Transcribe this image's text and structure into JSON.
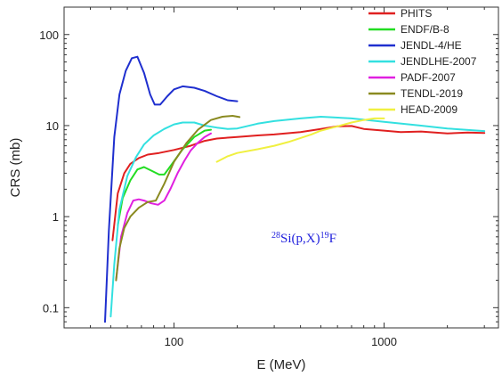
{
  "chart_data": {
    "type": "line",
    "xlabel": "E (MeV)",
    "ylabel": "CRS (mb)",
    "xscale": "log",
    "yscale": "log",
    "xlim": [
      30,
      3500
    ],
    "ylim": [
      0.06,
      200
    ],
    "xticks": [
      {
        "value": 100,
        "label": "100"
      },
      {
        "value": 1000,
        "label": "1000"
      }
    ],
    "yticks": [
      {
        "value": 0.1,
        "label": "0.1"
      },
      {
        "value": 1,
        "label": "1"
      },
      {
        "value": 10,
        "label": "10"
      },
      {
        "value": 100,
        "label": "100"
      }
    ],
    "legend_position": "top-right",
    "annotation": {
      "mass": "28",
      "main": "Si(p,X)",
      "product_mass": "19",
      "product": "F",
      "color": "#2222dd"
    },
    "series": [
      {
        "name": "PHITS",
        "color": "#e02020",
        "points": [
          [
            51,
            0.55
          ],
          [
            54,
            1.8
          ],
          [
            58,
            3.0
          ],
          [
            62,
            3.8
          ],
          [
            68,
            4.4
          ],
          [
            75,
            4.8
          ],
          [
            85,
            5.0
          ],
          [
            100,
            5.4
          ],
          [
            120,
            6.0
          ],
          [
            140,
            6.8
          ],
          [
            160,
            7.2
          ],
          [
            200,
            7.5
          ],
          [
            250,
            7.8
          ],
          [
            300,
            8.0
          ],
          [
            400,
            8.5
          ],
          [
            500,
            9.2
          ],
          [
            600,
            9.8
          ],
          [
            700,
            9.9
          ],
          [
            800,
            9.2
          ],
          [
            1000,
            8.8
          ],
          [
            1200,
            8.5
          ],
          [
            1500,
            8.6
          ],
          [
            2000,
            8.2
          ],
          [
            2500,
            8.4
          ],
          [
            3000,
            8.3
          ]
        ]
      },
      {
        "name": "ENDF/B-8",
        "color": "#22dd22",
        "points": [
          [
            54,
            0.8
          ],
          [
            57,
            1.6
          ],
          [
            62,
            2.5
          ],
          [
            67,
            3.3
          ],
          [
            72,
            3.5
          ],
          [
            78,
            3.2
          ],
          [
            85,
            2.9
          ],
          [
            90,
            2.9
          ],
          [
            98,
            3.8
          ],
          [
            110,
            5.5
          ],
          [
            125,
            7.5
          ],
          [
            140,
            8.8
          ],
          [
            150,
            9.0
          ]
        ]
      },
      {
        "name": "JENDL-4/HE",
        "color": "#1f2fcf",
        "points": [
          [
            47,
            0.07
          ],
          [
            49,
            0.7
          ],
          [
            52,
            7.5
          ],
          [
            55,
            22
          ],
          [
            59,
            40
          ],
          [
            63,
            55
          ],
          [
            67,
            57
          ],
          [
            72,
            38
          ],
          [
            77,
            22
          ],
          [
            81,
            17
          ],
          [
            86,
            17
          ],
          [
            93,
            21
          ],
          [
            100,
            25
          ],
          [
            110,
            27
          ],
          [
            125,
            26
          ],
          [
            140,
            24
          ],
          [
            160,
            21
          ],
          [
            180,
            19
          ],
          [
            200,
            18.5
          ]
        ]
      },
      {
        "name": "JENDLHE-2007",
        "color": "#33e0e0",
        "points": [
          [
            50,
            0.08
          ],
          [
            52,
            0.3
          ],
          [
            55,
            1.2
          ],
          [
            60,
            2.8
          ],
          [
            66,
            4.5
          ],
          [
            72,
            6.2
          ],
          [
            80,
            7.8
          ],
          [
            90,
            9.2
          ],
          [
            100,
            10.3
          ],
          [
            110,
            10.8
          ],
          [
            125,
            10.8
          ],
          [
            140,
            10.0
          ],
          [
            160,
            9.5
          ],
          [
            180,
            9.2
          ],
          [
            200,
            9.3
          ],
          [
            250,
            10.5
          ],
          [
            300,
            11.2
          ],
          [
            400,
            12.0
          ],
          [
            500,
            12.5
          ],
          [
            700,
            12.0
          ],
          [
            1000,
            11.0
          ],
          [
            1500,
            10.0
          ],
          [
            2000,
            9.3
          ],
          [
            3000,
            8.7
          ]
        ]
      },
      {
        "name": "PADF-2007",
        "color": "#e020e0",
        "points": [
          [
            53,
            0.2
          ],
          [
            56,
            0.6
          ],
          [
            60,
            1.1
          ],
          [
            64,
            1.5
          ],
          [
            68,
            1.55
          ],
          [
            72,
            1.5
          ],
          [
            78,
            1.4
          ],
          [
            84,
            1.35
          ],
          [
            90,
            1.5
          ],
          [
            96,
            2.0
          ],
          [
            104,
            3.0
          ],
          [
            112,
            4.1
          ],
          [
            120,
            5.3
          ],
          [
            130,
            6.5
          ],
          [
            140,
            7.5
          ],
          [
            150,
            8.2
          ]
        ]
      },
      {
        "name": "TENDL-2019",
        "color": "#8a8a20",
        "points": [
          [
            53,
            0.2
          ],
          [
            55,
            0.45
          ],
          [
            58,
            0.75
          ],
          [
            62,
            1.0
          ],
          [
            68,
            1.25
          ],
          [
            75,
            1.45
          ],
          [
            82,
            1.5
          ],
          [
            90,
            2.3
          ],
          [
            100,
            4.0
          ],
          [
            115,
            6.5
          ],
          [
            130,
            9.0
          ],
          [
            150,
            11.5
          ],
          [
            170,
            12.5
          ],
          [
            190,
            12.8
          ],
          [
            205,
            12.4
          ]
        ]
      },
      {
        "name": "HEAD-2009",
        "color": "#f0f040",
        "points": [
          [
            160,
            4.0
          ],
          [
            180,
            4.6
          ],
          [
            200,
            5.0
          ],
          [
            250,
            5.5
          ],
          [
            300,
            6.0
          ],
          [
            350,
            6.6
          ],
          [
            400,
            7.3
          ],
          [
            450,
            8.0
          ],
          [
            500,
            8.8
          ],
          [
            600,
            9.8
          ],
          [
            700,
            10.8
          ],
          [
            800,
            11.5
          ],
          [
            900,
            12.0
          ],
          [
            1000,
            12.0
          ]
        ]
      }
    ]
  }
}
